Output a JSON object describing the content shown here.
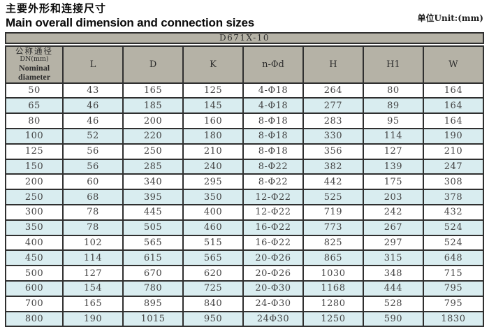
{
  "header": {
    "title_zh": "主要外形和连接尺寸",
    "title_en": "Main overall dimension and connection sizes",
    "unit": "单位Unit:(mm)"
  },
  "table": {
    "model": "D671X-10",
    "dn_header": {
      "zh": "公称通径",
      "code": "DN(mm)",
      "en": "Nominal diameter"
    },
    "columns": [
      "L",
      "D",
      "K",
      "n-Φd",
      "H",
      "H1",
      "W"
    ],
    "rows": [
      {
        "dn": "50",
        "values": [
          "43",
          "165",
          "125",
          "4-Φ18",
          "264",
          "80",
          "164"
        ]
      },
      {
        "dn": "65",
        "values": [
          "46",
          "185",
          "145",
          "4-Φ18",
          "277",
          "89",
          "164"
        ]
      },
      {
        "dn": "80",
        "values": [
          "46",
          "200",
          "160",
          "8-Φ18",
          "283",
          "95",
          "164"
        ]
      },
      {
        "dn": "100",
        "values": [
          "52",
          "220",
          "180",
          "8-Φ18",
          "330",
          "114",
          "190"
        ]
      },
      {
        "dn": "125",
        "values": [
          "56",
          "250",
          "210",
          "8-Φ18",
          "356",
          "127",
          "210"
        ]
      },
      {
        "dn": "150",
        "values": [
          "56",
          "285",
          "240",
          "8-Φ22",
          "382",
          "139",
          "247"
        ]
      },
      {
        "dn": "200",
        "values": [
          "60",
          "340",
          "295",
          "8-Φ22",
          "442",
          "175",
          "308"
        ]
      },
      {
        "dn": "250",
        "values": [
          "68",
          "395",
          "350",
          "12-Φ22",
          "525",
          "203",
          "378"
        ]
      },
      {
        "dn": "300",
        "values": [
          "78",
          "445",
          "400",
          "12-Φ22",
          "719",
          "242",
          "432"
        ]
      },
      {
        "dn": "350",
        "values": [
          "78",
          "505",
          "460",
          "16-Φ22",
          "773",
          "267",
          "524"
        ]
      },
      {
        "dn": "400",
        "values": [
          "102",
          "565",
          "515",
          "16-Φ22",
          "825",
          "297",
          "524"
        ]
      },
      {
        "dn": "450",
        "values": [
          "114",
          "615",
          "565",
          "20-Φ26",
          "865",
          "315",
          "648"
        ]
      },
      {
        "dn": "500",
        "values": [
          "127",
          "670",
          "620",
          "20-Φ26",
          "1030",
          "348",
          "715"
        ]
      },
      {
        "dn": "600",
        "values": [
          "154",
          "780",
          "725",
          "20-Φ30",
          "1168",
          "444",
          "795"
        ]
      },
      {
        "dn": "700",
        "values": [
          "165",
          "895",
          "840",
          "24-Φ30",
          "1280",
          "528",
          "795"
        ]
      },
      {
        "dn": "800",
        "values": [
          "190",
          "1015",
          "950",
          "24Φ30",
          "1250",
          "590",
          "1830"
        ]
      }
    ]
  },
  "colors": {
    "border": "#2f2f2f",
    "header_bg": "#b5b2a6",
    "alt_row_bg": "#d9edf0",
    "number_text": "#444444"
  }
}
